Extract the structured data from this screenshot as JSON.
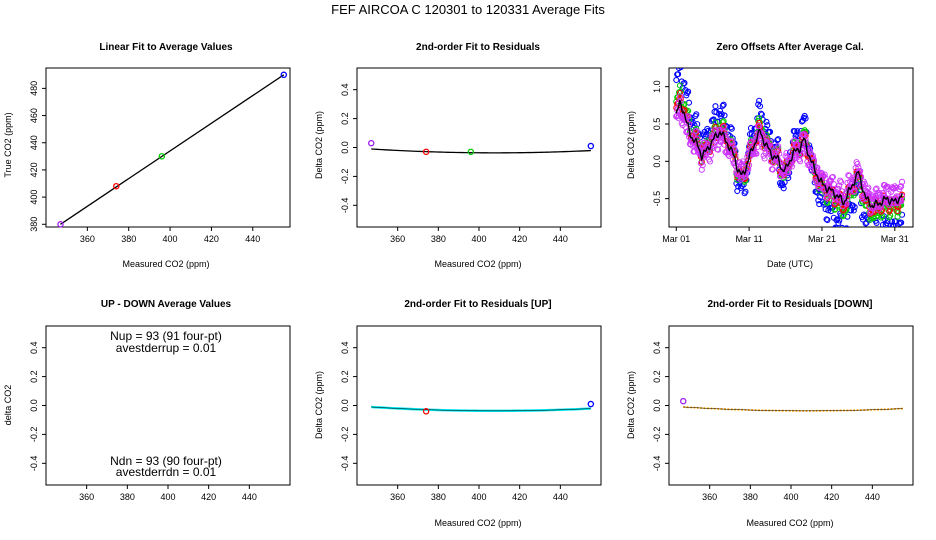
{
  "figure_title": "FEF   AIRCOA C   120301 to 120331   Average Fits",
  "colors": {
    "line": "#000000",
    "blue": "#0000ff",
    "red": "#ff0000",
    "green": "#00cc00",
    "purple": "#a020f0",
    "violet": "#cc33ff",
    "cyan": "#00e5ee",
    "orange": "#ffa500"
  },
  "chart_data": [
    {
      "id": "p1",
      "type": "scatter",
      "title": "Linear Fit to Average Values",
      "xlabel": "Measured CO2 (ppm)",
      "ylabel": "True CO2 (ppm)",
      "xlim": [
        340,
        458
      ],
      "ylim": [
        378,
        495
      ],
      "xticks": [
        360,
        380,
        400,
        420,
        440
      ],
      "yticks": [
        380,
        400,
        420,
        440,
        460,
        480
      ],
      "fit_line": [
        [
          347,
          380
        ],
        [
          455,
          490
        ]
      ],
      "points": [
        {
          "x": 347,
          "y": 380,
          "color": "purple"
        },
        {
          "x": 374,
          "y": 408,
          "color": "red"
        },
        {
          "x": 396,
          "y": 430,
          "color": "green"
        },
        {
          "x": 455,
          "y": 490,
          "color": "blue"
        }
      ]
    },
    {
      "id": "p2",
      "type": "scatter",
      "title": "2nd-order Fit to Residuals",
      "xlabel": "Measured CO2 (ppm)",
      "ylabel": "Delta CO2 (ppm)",
      "xlim": [
        340,
        460
      ],
      "ylim": [
        -0.55,
        0.55
      ],
      "xticks": [
        360,
        380,
        400,
        420,
        440
      ],
      "yticks": [
        -0.4,
        -0.2,
        0.0,
        0.2,
        0.4
      ],
      "curve": {
        "from": 347,
        "to": 455,
        "a": 7.2e-06,
        "h": 408,
        "c": -0.037,
        "color": "line"
      },
      "points": [
        {
          "x": 347,
          "y": 0.03,
          "color": "purple"
        },
        {
          "x": 374,
          "y": -0.03,
          "color": "red"
        },
        {
          "x": 396,
          "y": -0.03,
          "color": "green"
        },
        {
          "x": 455,
          "y": 0.01,
          "color": "blue"
        }
      ]
    },
    {
      "id": "p3",
      "type": "line",
      "title": "Zero Offsets After Average Cal.",
      "xlabel": "Date (UTC)",
      "ylabel": "Delta CO2 (ppm)",
      "xlim": [
        -1,
        32.5
      ],
      "ylim": [
        -0.88,
        1.25
      ],
      "xticks": [
        0,
        10,
        20,
        30
      ],
      "xticklabels": [
        "Mar 01",
        "Mar 11",
        "Mar 21",
        "Mar 31"
      ],
      "yticks": [
        -0.5,
        0.0,
        0.5,
        1.0
      ],
      "series": [
        {
          "name": "blue",
          "color": "blue",
          "offset": 0.24,
          "amp": 1.45
        },
        {
          "name": "green",
          "color": "green",
          "offset": 0.06,
          "amp": 1.15
        },
        {
          "name": "red",
          "color": "red",
          "offset": 0.03,
          "amp": 1.05
        },
        {
          "name": "purple",
          "color": "violet",
          "offset": 0.0,
          "amp": 0.9
        },
        {
          "name": "mean",
          "color": "line",
          "offset": 0.0,
          "amp": 1.0
        }
      ],
      "trace": [
        [
          0,
          0.62
        ],
        [
          0.5,
          0.78
        ],
        [
          1,
          0.68
        ],
        [
          1.5,
          0.48
        ],
        [
          2,
          0.35
        ],
        [
          3,
          0.2
        ],
        [
          3.5,
          0.08
        ],
        [
          4,
          0.12
        ],
        [
          5,
          0.28
        ],
        [
          6,
          0.4
        ],
        [
          7,
          0.25
        ],
        [
          8,
          0.05
        ],
        [
          8.5,
          -0.12
        ],
        [
          9,
          -0.2
        ],
        [
          9.5,
          -0.1
        ],
        [
          10,
          0.05
        ],
        [
          11,
          0.3
        ],
        [
          11.5,
          0.4
        ],
        [
          12,
          0.28
        ],
        [
          13,
          0.1
        ],
        [
          14,
          0.02
        ],
        [
          14.5,
          -0.1
        ],
        [
          15,
          -0.12
        ],
        [
          16,
          0.1
        ],
        [
          17,
          0.18
        ],
        [
          17.5,
          0.3
        ],
        [
          18,
          0.15
        ],
        [
          19,
          -0.12
        ],
        [
          20,
          -0.3
        ],
        [
          21,
          -0.38
        ],
        [
          22,
          -0.45
        ],
        [
          23,
          -0.55
        ],
        [
          24,
          -0.35
        ],
        [
          25,
          -0.15
        ],
        [
          25.5,
          -0.32
        ],
        [
          26,
          -0.5
        ],
        [
          27,
          -0.6
        ],
        [
          28,
          -0.55
        ],
        [
          29,
          -0.5
        ],
        [
          30,
          -0.55
        ],
        [
          31,
          -0.45
        ]
      ]
    },
    {
      "id": "p4",
      "type": "scatter",
      "title": "UP - DOWN Average Values",
      "xlabel": "",
      "ylabel": "delta CO2",
      "xlim": [
        340,
        460
      ],
      "ylim": [
        -0.55,
        0.55
      ],
      "xticks": [
        360,
        380,
        400,
        420,
        440
      ],
      "yticks": [
        -0.4,
        -0.2,
        0.0,
        0.2,
        0.4
      ],
      "annotations": {
        "nup": "Nup = 93 (91 four-pt)",
        "avestderrup": "avestderrup =  0.01",
        "ndn": "Ndn = 93 (90 four-pt)",
        "avestderrdn": "avestderrdn =  0.01"
      },
      "points": []
    },
    {
      "id": "p5",
      "type": "scatter",
      "title": "2nd-order Fit to Residuals [UP]",
      "xlabel": "Measured CO2 (ppm)",
      "ylabel": "Delta CO2 (ppm)",
      "xlim": [
        340,
        460
      ],
      "ylim": [
        -0.55,
        0.55
      ],
      "xticks": [
        360,
        380,
        400,
        420,
        440
      ],
      "yticks": [
        -0.4,
        -0.2,
        0.0,
        0.2,
        0.4
      ],
      "curve": {
        "from": 347,
        "to": 455,
        "a": 7.2e-06,
        "h": 408,
        "c": -0.037,
        "color": "cyan"
      },
      "points": [
        {
          "x": 374,
          "y": -0.04,
          "color": "red"
        },
        {
          "x": 455,
          "y": 0.01,
          "color": "blue"
        }
      ]
    },
    {
      "id": "p6",
      "type": "scatter",
      "title": "2nd-order Fit to Residuals [DOWN]",
      "xlabel": "Measured CO2 (ppm)",
      "ylabel": "Delta CO2 (ppm)",
      "xlim": [
        340,
        460
      ],
      "ylim": [
        -0.55,
        0.55
      ],
      "xticks": [
        360,
        380,
        400,
        420,
        440
      ],
      "yticks": [
        -0.4,
        -0.2,
        0.0,
        0.2,
        0.4
      ],
      "curve": {
        "from": 347,
        "to": 455,
        "a": 7.2e-06,
        "h": 408,
        "c": -0.037,
        "color": "orange"
      },
      "points": [
        {
          "x": 347,
          "y": 0.03,
          "color": "purple"
        }
      ]
    }
  ]
}
